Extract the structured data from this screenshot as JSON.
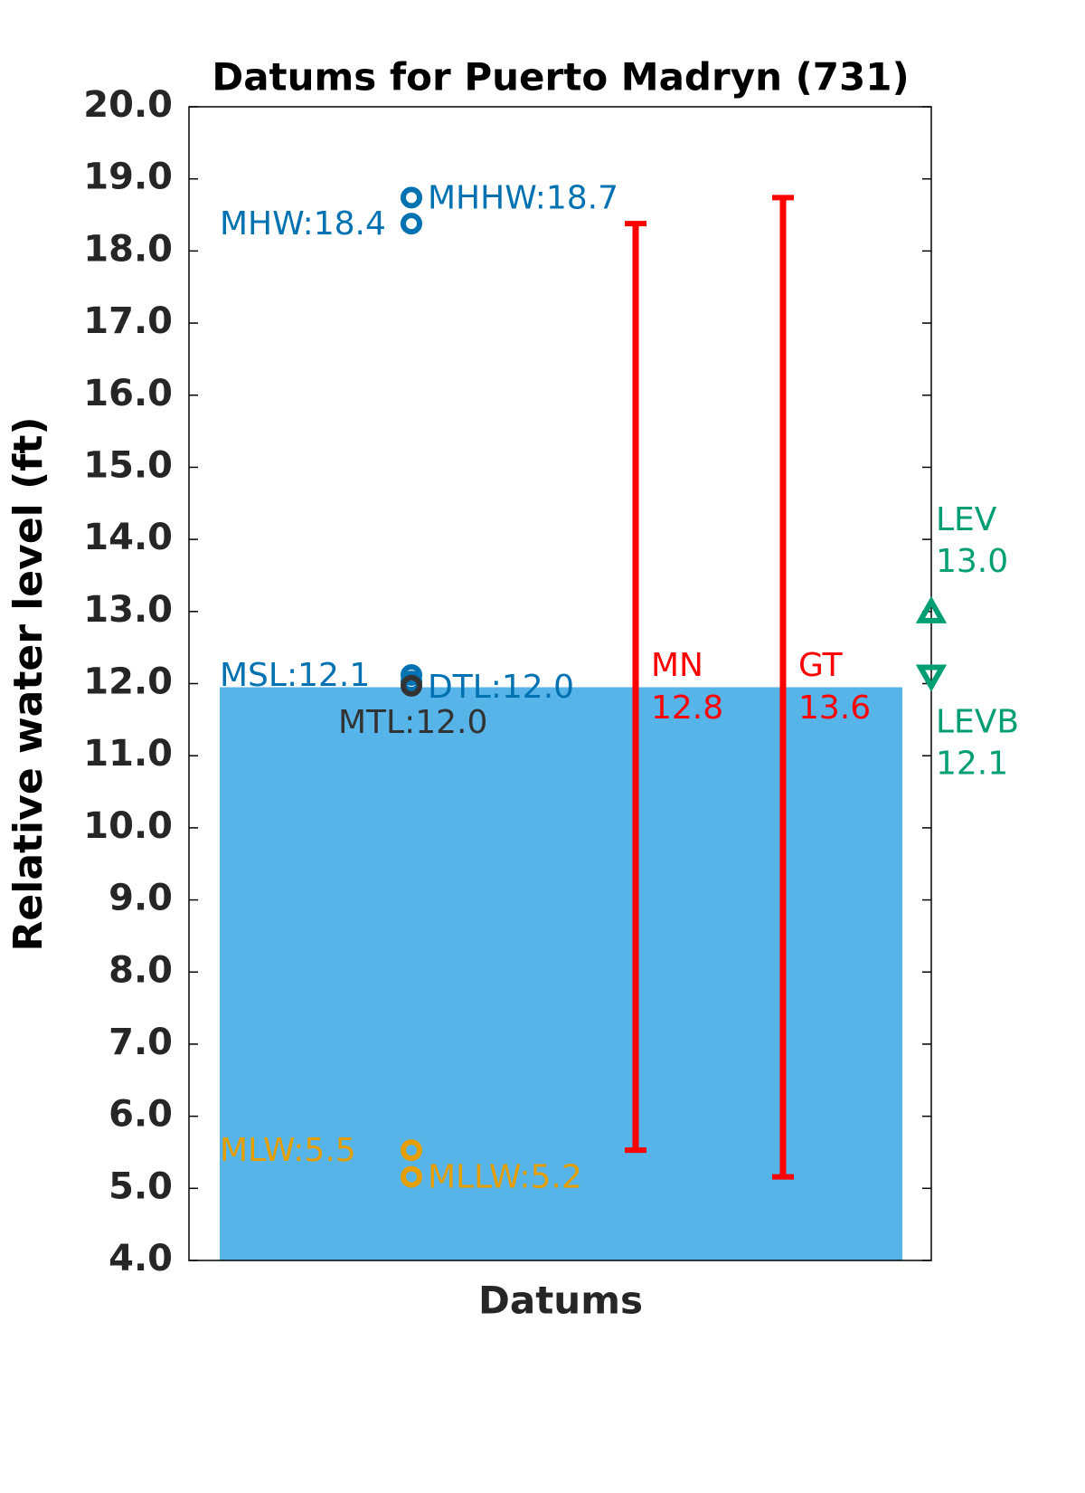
{
  "chart_data": {
    "type": "datums",
    "title": "Datums for Puerto Madryn (731)",
    "ylabel": "Relative water level (ft)",
    "xlabel": "Datums",
    "ylim": [
      4,
      20
    ],
    "yticks": [
      {
        "value": 4,
        "label": "4.0"
      },
      {
        "value": 5,
        "label": "5.0"
      },
      {
        "value": 6,
        "label": "6.0"
      },
      {
        "value": 7,
        "label": "7.0"
      },
      {
        "value": 8,
        "label": "8.0"
      },
      {
        "value": 9,
        "label": "9.0"
      },
      {
        "value": 10,
        "label": "10.0"
      },
      {
        "value": 11,
        "label": "11.0"
      },
      {
        "value": 12,
        "label": "12.0"
      },
      {
        "value": 13,
        "label": "13.0"
      },
      {
        "value": 14,
        "label": "14.0"
      },
      {
        "value": 15,
        "label": "15.0"
      },
      {
        "value": 16,
        "label": "16.0"
      },
      {
        "value": 17,
        "label": "17.0"
      },
      {
        "value": 18,
        "label": "18.0"
      },
      {
        "value": 19,
        "label": "19.0"
      },
      {
        "value": 20,
        "label": "20.0"
      }
    ],
    "bar": {
      "value": 11.95,
      "color": "#56b4e9"
    },
    "points": [
      {
        "label": "MHHW:18.7",
        "value": 18.74,
        "color": "#0072b2"
      },
      {
        "label": "MHW:18.4",
        "value": 18.38,
        "color": "#0072b2"
      },
      {
        "label": "MSL:12.1",
        "value": 12.12,
        "color": "#0072b2"
      },
      {
        "label": "DTL:12.0",
        "value": 12.03,
        "color": "#0072b2"
      },
      {
        "label": "MTL:12.0",
        "value": 11.97,
        "color": "#333333"
      },
      {
        "label": "MLW:5.5",
        "value": 5.53,
        "color": "#e69f00"
      },
      {
        "label": "MLLW:5.2",
        "value": 5.16,
        "color": "#e69f00"
      }
    ],
    "ranges": [
      {
        "name": "MN",
        "value": 12.8,
        "low": 5.53,
        "high": 18.38,
        "color": "#ff0000"
      },
      {
        "name": "GT",
        "value": 13.6,
        "low": 5.16,
        "high": 18.74,
        "color": "#ff0000"
      }
    ],
    "levels": [
      {
        "name": "LEV",
        "value": 13.0,
        "value_label": "13.0",
        "marker": "up",
        "color": "#009e73"
      },
      {
        "name": "LEVB",
        "value": 12.1,
        "value_label": "12.1",
        "marker": "down",
        "color": "#009e73"
      }
    ]
  }
}
